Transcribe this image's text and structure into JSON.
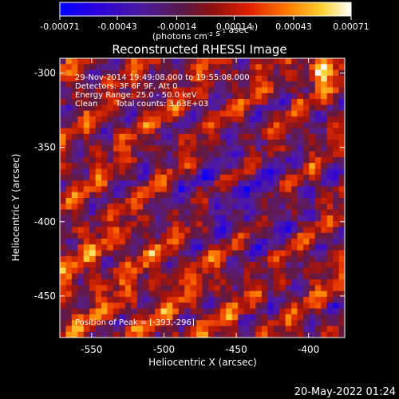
{
  "chart_data": {
    "type": "heatmap",
    "title": "Reconstructed RHESSI Image",
    "xlabel": "Heliocentric X (arcsec)",
    "ylabel": "Heliocentric Y (arcsec)",
    "xlim": [
      -572,
      -375
    ],
    "ylim": [
      -478,
      -290
    ],
    "x_ticks": [
      -550,
      -500,
      -450,
      -400
    ],
    "x_tick_labels": [
      "-550",
      "-500",
      "-450",
      "-400"
    ],
    "y_ticks": [
      -300,
      -350,
      -400,
      -450
    ],
    "y_tick_labels": [
      "-300",
      "-350",
      "-400",
      "-450"
    ],
    "colorbar": {
      "range": [
        -0.00071,
        0.00071
      ],
      "ticks": [
        -0.00071,
        -0.00043,
        -0.00014,
        0.00014,
        0.00043,
        0.00071
      ],
      "tick_labels": [
        "-0.00071",
        "-0.00043",
        "-0.00014",
        "0.00014",
        "0.00043",
        "0.00071"
      ],
      "units_text": "(photons cm",
      "units_parts": [
        {
          "text": "(photons cm",
          "sup": false
        },
        {
          "text": "-2",
          "sup": true
        },
        {
          "text": " s",
          "sup": false
        },
        {
          "text": "-1",
          "sup": true
        },
        {
          "text": " asec",
          "sup": false
        },
        {
          "text": "-2",
          "sup": true
        },
        {
          "text": ")",
          "sup": false
        }
      ],
      "colors": [
        "#0000ff",
        "#3a00cc",
        "#5a1a8a",
        "#7a1a2a",
        "#c81a00",
        "#ff5a00",
        "#ffb400",
        "#fff060",
        "#ffffff"
      ]
    },
    "annotations": [
      "29-Nov-2014 19:49:08.000 to 19:55:08.000",
      "Detectors: 3F 6F 9F, Att 0",
      "Energy Range: 25.0 - 50.0 keV",
      "Clean",
      "Total counts: 3.63E+03"
    ],
    "peak_label": "Position of Peak = [-393,-296]",
    "peak": {
      "x": -393,
      "y": -296
    },
    "grid": false
  },
  "footer": {
    "timestamp": "20-May-2022 01:24"
  }
}
